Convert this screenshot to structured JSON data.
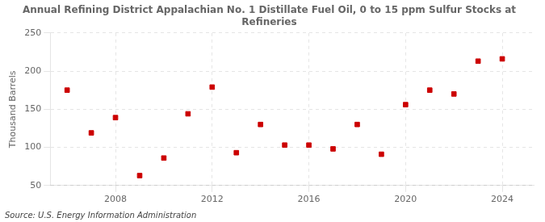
{
  "chart_data": {
    "type": "scatter",
    "title": "Annual Refining District Appalachian No. 1 Distillate Fuel Oil, 0 to 15 ppm Sulfur Stocks at\nRefineries",
    "ylabel": "Thousand Barrels",
    "annotation": "Source: U.S. Energy Information Administration",
    "x": [
      2006,
      2007,
      2008,
      2009,
      2010,
      2011,
      2012,
      2013,
      2014,
      2015,
      2016,
      2017,
      2018,
      2019,
      2020,
      2021,
      2022,
      2023,
      2024
    ],
    "values": [
      175,
      119,
      139,
      63,
      86,
      144,
      179,
      93,
      130,
      103,
      103,
      98,
      130,
      91,
      156,
      175,
      170,
      213,
      216
    ],
    "color": "#cc0000",
    "marker": "square",
    "xlim": [
      2005.3,
      2025.3
    ],
    "xticks": [
      2008,
      2012,
      2016,
      2020,
      2024
    ],
    "ylim": [
      50,
      250
    ],
    "yticks": [
      50,
      100,
      150,
      200,
      250
    ],
    "grid": true
  }
}
